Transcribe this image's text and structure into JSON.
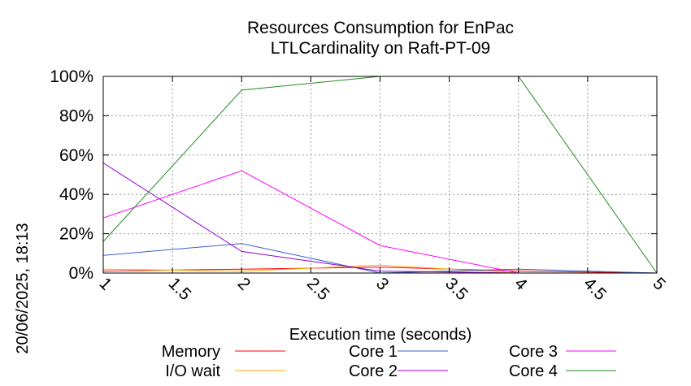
{
  "chart_data": {
    "type": "line",
    "title": "Resources Consumption for EnPac",
    "subtitle": "LTLCardinality on Raft-PT-09",
    "xlabel": "Execution time (seconds)",
    "ylabel": "",
    "xlim": [
      1,
      5
    ],
    "ylim": [
      0,
      100
    ],
    "x_ticks": [
      "1",
      "1.5",
      "2",
      "2.5",
      "3",
      "3.5",
      "4",
      "4.5",
      "5"
    ],
    "y_ticks": [
      "0%",
      "20%",
      "40%",
      "60%",
      "80%",
      "100%"
    ],
    "grid": true,
    "legend_position": "bottom",
    "side_label": "20/06/2025, 18:13",
    "x": [
      1,
      2,
      3,
      4,
      5
    ],
    "series": [
      {
        "name": "Memory",
        "color": "#ff0000",
        "values": [
          1,
          2,
          3,
          1,
          0
        ]
      },
      {
        "name": "I/O wait",
        "color": "#ffa500",
        "values": [
          2,
          1,
          4,
          0,
          0
        ]
      },
      {
        "name": "Core 1",
        "color": "#3a5fcd",
        "values": [
          9,
          15,
          0,
          2,
          0
        ]
      },
      {
        "name": "Core 2",
        "color": "#9400d3",
        "values": [
          56,
          11,
          1,
          0,
          0
        ]
      },
      {
        "name": "Core 3",
        "color": "#ff00ff",
        "values": [
          28,
          52,
          14,
          0,
          0
        ]
      },
      {
        "name": "Core 4",
        "color": "#228b22",
        "values": [
          16,
          93,
          100,
          100,
          0
        ]
      }
    ]
  }
}
